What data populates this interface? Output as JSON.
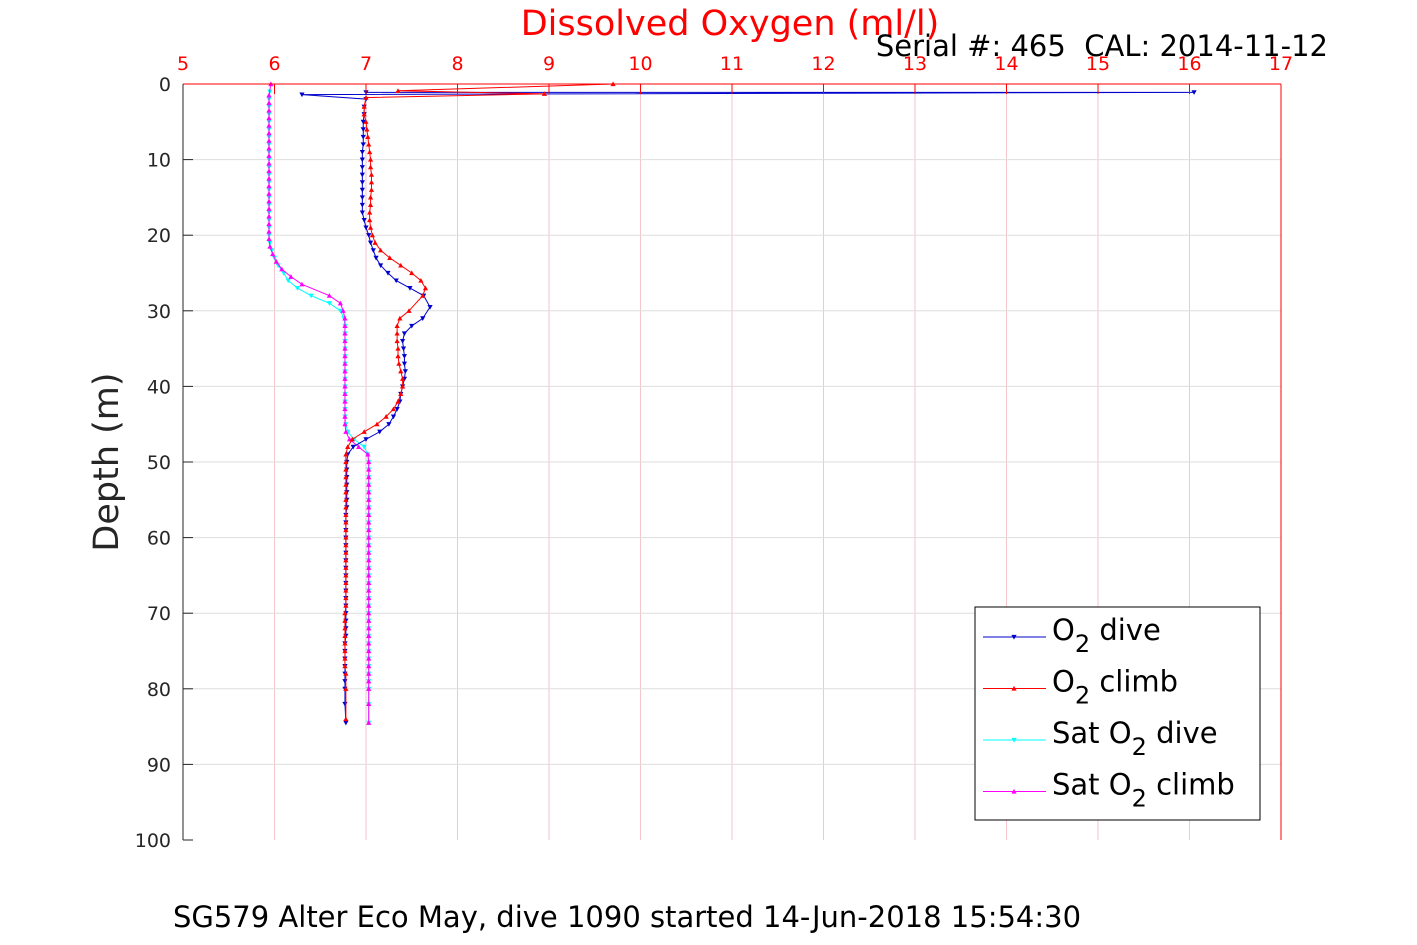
{
  "chart_data": {
    "type": "line",
    "title": "Dissolved Oxygen (ml/l)",
    "subtitle": "Serial #: 465  CAL: 2014-11-12",
    "caption": "SG579 Alter Eco May, dive 1090 started 14-Jun-2018 15:54:30",
    "xlabel": "",
    "ylabel": "Depth (m)",
    "xlim": [
      5,
      17
    ],
    "ylim": [
      0,
      100
    ],
    "y_reversed": true,
    "x_axis_position": "top",
    "grid": true,
    "x_ticks": [
      5,
      6,
      7,
      8,
      9,
      10,
      11,
      12,
      13,
      14,
      15,
      16,
      17
    ],
    "y_ticks": [
      0,
      10,
      20,
      30,
      40,
      50,
      60,
      70,
      80,
      90,
      100
    ],
    "legend_position": "bottom-right",
    "colors": {
      "title": "#ff0000",
      "x_axis": "#ff0000",
      "grid_x": "#f2c6cc",
      "grid_y": "#dedede"
    },
    "series": [
      {
        "name": "O2 dive",
        "label_main": "O",
        "label_sub": "2",
        "label_pre": "",
        "label_post": " dive",
        "color": "#0000cc",
        "marker": "triangle-down",
        "x": [
          7.0,
          16.05,
          6.3,
          7.0,
          6.98,
          6.98,
          6.97,
          6.97,
          6.97,
          6.97,
          6.96,
          6.96,
          6.96,
          6.96,
          6.96,
          6.96,
          6.96,
          6.96,
          6.96,
          6.98,
          7.0,
          7.03,
          7.05,
          7.08,
          7.11,
          7.16,
          7.24,
          7.33,
          7.48,
          7.63,
          7.7,
          7.62,
          7.5,
          7.42,
          7.4,
          7.41,
          7.42,
          7.42,
          7.43,
          7.42,
          7.4,
          7.38,
          7.37,
          7.34,
          7.3,
          7.25,
          7.15,
          7.0,
          6.86,
          6.8,
          6.79,
          6.79,
          6.79,
          6.79,
          6.79,
          6.79,
          6.79,
          6.78,
          6.78,
          6.78,
          6.78,
          6.78,
          6.78,
          6.78,
          6.78,
          6.78,
          6.78,
          6.78,
          6.78,
          6.78,
          6.78,
          6.78,
          6.78,
          6.78,
          6.77,
          6.77,
          6.77,
          6.77,
          6.77,
          6.77,
          6.77,
          6.77,
          6.78
        ],
        "y": [
          1.1,
          1.1,
          1.4,
          2.0,
          3.0,
          4.0,
          5.0,
          6.0,
          7.0,
          8.0,
          9.0,
          10.0,
          11.0,
          12.0,
          13.0,
          14.0,
          15.0,
          16.0,
          17.0,
          18.0,
          19.0,
          20.0,
          21.0,
          22.0,
          23.0,
          24.0,
          25.0,
          26.0,
          27.0,
          28.0,
          29.5,
          31.0,
          32.0,
          33.0,
          34.0,
          35.0,
          36.0,
          37.0,
          38.0,
          39.0,
          40.0,
          41.0,
          42.0,
          43.0,
          44.0,
          45.0,
          46.0,
          47.0,
          48.0,
          49.0,
          50.0,
          51.0,
          52.0,
          53.0,
          54.0,
          55.0,
          56.0,
          57.0,
          58.0,
          59.0,
          60.0,
          61.0,
          62.0,
          63.0,
          64.0,
          65.0,
          66.0,
          67.0,
          68.0,
          69.0,
          70.0,
          71.0,
          72.0,
          73.0,
          74.0,
          75.0,
          76.0,
          77.0,
          78.0,
          79.0,
          80.0,
          82.0,
          84.5
        ]
      },
      {
        "name": "O2 climb",
        "label_main": "O",
        "label_sub": "2",
        "label_pre": "",
        "label_post": " climb",
        "color": "#ff0000",
        "marker": "triangle-up",
        "x": [
          9.7,
          7.35,
          8.95,
          7.0,
          6.98,
          6.98,
          7.0,
          7.01,
          7.02,
          7.03,
          7.04,
          7.05,
          7.05,
          7.06,
          7.06,
          7.06,
          7.05,
          7.05,
          7.04,
          7.04,
          7.05,
          7.07,
          7.1,
          7.16,
          7.26,
          7.38,
          7.5,
          7.6,
          7.65,
          7.62,
          7.47,
          7.37,
          7.34,
          7.34,
          7.34,
          7.35,
          7.35,
          7.36,
          7.38,
          7.4,
          7.4,
          7.38,
          7.35,
          7.3,
          7.22,
          7.12,
          6.98,
          6.85,
          6.8,
          6.78,
          6.78,
          6.78,
          6.78,
          6.78,
          6.78,
          6.78,
          6.78,
          6.78,
          6.78,
          6.78,
          6.78,
          6.78,
          6.78,
          6.78,
          6.78,
          6.78,
          6.78,
          6.78,
          6.78,
          6.78,
          6.77,
          6.77,
          6.77,
          6.77,
          6.77,
          6.77,
          6.77,
          6.77,
          6.78,
          6.78,
          6.78
        ],
        "y": [
          0.0,
          0.9,
          1.3,
          1.8,
          3.0,
          4.0,
          5.0,
          6.0,
          7.0,
          8.0,
          9.0,
          10.0,
          11.0,
          12.0,
          13.0,
          14.0,
          15.0,
          16.0,
          17.0,
          18.0,
          19.0,
          20.0,
          21.0,
          22.0,
          23.0,
          24.0,
          25.0,
          26.0,
          27.0,
          28.0,
          30.0,
          31.0,
          32.0,
          33.0,
          34.0,
          35.0,
          36.0,
          37.0,
          38.0,
          39.0,
          40.0,
          41.0,
          42.0,
          43.0,
          44.0,
          45.0,
          46.0,
          47.0,
          48.0,
          49.0,
          50.0,
          51.0,
          52.0,
          53.0,
          54.0,
          55.0,
          56.0,
          57.0,
          58.0,
          59.0,
          60.0,
          61.0,
          62.0,
          63.0,
          64.0,
          65.0,
          66.0,
          67.0,
          68.0,
          69.0,
          70.0,
          71.0,
          72.0,
          73.0,
          74.0,
          75.0,
          76.0,
          77.0,
          78.0,
          80.0,
          84.0
        ]
      },
      {
        "name": "Sat O2 dive",
        "label_main": "Sat O",
        "label_sub": "2",
        "label_pre": "",
        "label_post": " dive",
        "color": "#00ffff",
        "marker": "triangle-down",
        "x": [
          5.95,
          5.94,
          5.94,
          5.94,
          5.94,
          5.94,
          5.94,
          5.94,
          5.94,
          5.94,
          5.94,
          5.94,
          5.94,
          5.94,
          5.94,
          5.94,
          5.94,
          5.94,
          5.94,
          5.94,
          5.95,
          5.97,
          6.0,
          6.04,
          6.1,
          6.15,
          6.25,
          6.4,
          6.6,
          6.72,
          6.76,
          6.77,
          6.77,
          6.77,
          6.77,
          6.77,
          6.77,
          6.77,
          6.77,
          6.77,
          6.77,
          6.77,
          6.77,
          6.77,
          6.78,
          6.8,
          6.87,
          6.98,
          7.02,
          7.03,
          7.03,
          7.03,
          7.03,
          7.03,
          7.03,
          7.03,
          7.03,
          7.03,
          7.03,
          7.03,
          7.03,
          7.03,
          7.03,
          7.03,
          7.03,
          7.03,
          7.03,
          7.03,
          7.03,
          7.03,
          7.03,
          7.03,
          7.03,
          7.03,
          7.03,
          7.03,
          7.03,
          7.03,
          7.03,
          7.03,
          7.03,
          7.03
        ],
        "y": [
          1.0,
          2.0,
          3.0,
          4.0,
          5.0,
          6.0,
          7.0,
          8.0,
          9.0,
          10.0,
          11.0,
          12.0,
          13.0,
          14.0,
          15.0,
          16.0,
          17.0,
          18.0,
          19.0,
          20.0,
          21.0,
          22.0,
          23.0,
          24.0,
          25.0,
          26.0,
          27.0,
          28.0,
          29.0,
          30.0,
          31.0,
          32.0,
          33.0,
          34.0,
          35.0,
          36.0,
          37.0,
          38.0,
          39.0,
          40.0,
          41.0,
          42.0,
          43.0,
          44.0,
          45.0,
          46.0,
          47.0,
          48.0,
          49.0,
          50.0,
          51.0,
          52.0,
          53.0,
          54.0,
          55.0,
          56.0,
          57.0,
          58.0,
          59.0,
          60.0,
          61.0,
          62.0,
          63.0,
          64.0,
          65.0,
          66.0,
          67.0,
          68.0,
          69.0,
          70.0,
          71.0,
          72.0,
          73.0,
          74.0,
          75.0,
          76.0,
          77.0,
          78.0,
          79.0,
          80.0,
          82.0,
          84.5
        ]
      },
      {
        "name": "Sat O2 climb",
        "label_main": "Sat O",
        "label_sub": "2",
        "label_pre": "",
        "label_post": " climb",
        "color": "#ff00ff",
        "marker": "triangle-up",
        "x": [
          5.96,
          5.94,
          5.94,
          5.94,
          5.94,
          5.94,
          5.94,
          5.94,
          5.94,
          5.94,
          5.94,
          5.94,
          5.94,
          5.94,
          5.94,
          5.94,
          5.94,
          5.94,
          5.94,
          5.94,
          5.94,
          5.95,
          5.98,
          6.02,
          6.08,
          6.18,
          6.3,
          6.6,
          6.72,
          6.75,
          6.77,
          6.77,
          6.77,
          6.77,
          6.77,
          6.77,
          6.77,
          6.77,
          6.77,
          6.77,
          6.77,
          6.77,
          6.77,
          6.77,
          6.77,
          6.78,
          6.82,
          6.92,
          7.02,
          7.03,
          7.03,
          7.03,
          7.03,
          7.03,
          7.03,
          7.03,
          7.03,
          7.03,
          7.03,
          7.03,
          7.03,
          7.03,
          7.03,
          7.03,
          7.03,
          7.03,
          7.03,
          7.03,
          7.03,
          7.03,
          7.03,
          7.03,
          7.03,
          7.03,
          7.03,
          7.03,
          7.03,
          7.03,
          7.03,
          7.03,
          7.03,
          7.03
        ],
        "y": [
          0.0,
          1.5,
          2.5,
          3.5,
          4.5,
          5.5,
          6.5,
          7.5,
          8.5,
          9.5,
          10.5,
          11.5,
          12.5,
          13.5,
          14.5,
          15.5,
          16.5,
          17.5,
          18.5,
          19.5,
          20.5,
          21.5,
          22.5,
          23.5,
          24.5,
          25.5,
          26.5,
          28.0,
          29.0,
          30.0,
          31.0,
          32.0,
          33.0,
          34.0,
          35.0,
          36.0,
          37.0,
          38.0,
          39.0,
          40.0,
          41.0,
          42.0,
          43.0,
          44.0,
          45.0,
          46.0,
          47.0,
          48.0,
          49.0,
          50.0,
          51.0,
          52.0,
          53.0,
          54.0,
          55.0,
          56.0,
          57.0,
          58.0,
          59.0,
          60.0,
          61.0,
          62.0,
          63.0,
          64.0,
          65.0,
          66.0,
          67.0,
          68.0,
          69.0,
          70.0,
          71.0,
          72.0,
          73.0,
          74.0,
          75.0,
          76.0,
          77.0,
          78.0,
          79.0,
          80.0,
          82.0,
          84.5
        ]
      }
    ]
  }
}
